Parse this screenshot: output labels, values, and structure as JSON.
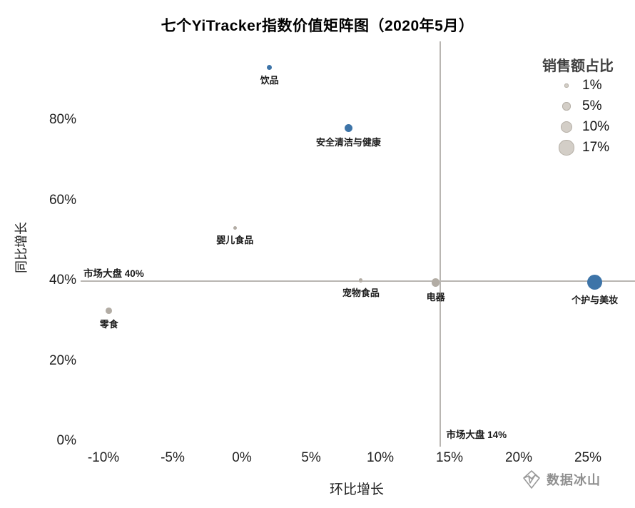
{
  "title": "七个YiTracker指数价值矩阵图（2020年5月）",
  "watermark": "数据冰山",
  "chart_data": {
    "type": "scatter",
    "title": "七个YiTracker指数价值矩阵图（2020年5月）",
    "xlabel": "环比增长",
    "ylabel": "同比增长",
    "x_ticks": [
      "-10%",
      "-5%",
      "0%",
      "5%",
      "10%",
      "15%",
      "20%",
      "25%"
    ],
    "x_tick_values": [
      -10,
      -5,
      0,
      5,
      10,
      15,
      20,
      25
    ],
    "y_ticks": [
      "0%",
      "20%",
      "40%",
      "60%",
      "80%"
    ],
    "y_tick_values": [
      0,
      20,
      40,
      60,
      80
    ],
    "xlim": [
      -12.5,
      28
    ],
    "ylim": [
      -3,
      97
    ],
    "grid": false,
    "legend_position": "top-right",
    "reference_lines": {
      "h": {
        "value": 40,
        "label": "市场大盘 40%"
      },
      "v": {
        "value": 14.3,
        "label": "市场大盘 14%"
      }
    },
    "legend": {
      "title": "销售额占比",
      "items": [
        {
          "label": "1%",
          "size_pct": 1
        },
        {
          "label": "5%",
          "size_pct": 5
        },
        {
          "label": "10%",
          "size_pct": 10
        },
        {
          "label": "17%",
          "size_pct": 17
        }
      ]
    },
    "colors": {
      "blue": "#3d74a8",
      "gray": "#b2aca4"
    },
    "points": [
      {
        "name": "饮品",
        "x": 2,
        "y": 93,
        "size_pct": 2,
        "color": "blue"
      },
      {
        "name": "安全清洁与健康",
        "x": 7.7,
        "y": 78,
        "size_pct": 5,
        "color": "blue"
      },
      {
        "name": "婴儿食品",
        "x": -0.5,
        "y": 53,
        "size_pct": 1,
        "color": "gray"
      },
      {
        "name": "宠物食品",
        "x": 8.6,
        "y": 40,
        "size_pct": 1,
        "color": "gray"
      },
      {
        "name": "电器",
        "x": 14,
        "y": 39.5,
        "size_pct": 5,
        "color": "gray"
      },
      {
        "name": "个护与美妆",
        "x": 25.5,
        "y": 39.5,
        "size_pct": 17,
        "color": "blue"
      },
      {
        "name": "零食",
        "x": -9.6,
        "y": 32.5,
        "size_pct": 3,
        "color": "gray"
      }
    ]
  }
}
